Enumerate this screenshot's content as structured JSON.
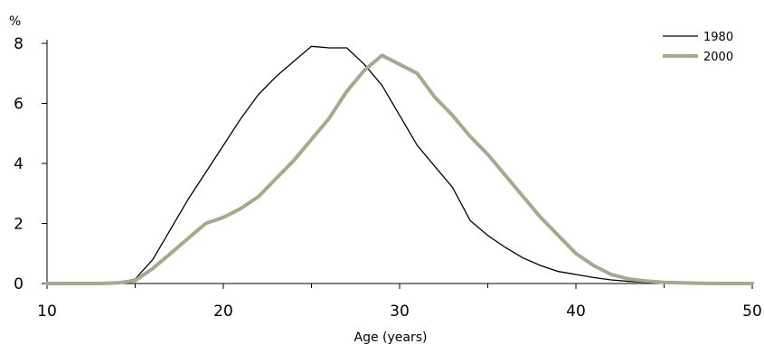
{
  "chart_data": {
    "type": "line",
    "xlabel": "Age (years)",
    "ylabel": "%",
    "xlim": [
      10,
      50
    ],
    "ylim": [
      0,
      8
    ],
    "x_ticks": [
      10,
      20,
      30,
      40,
      50
    ],
    "y_ticks": [
      0,
      2,
      4,
      6,
      8
    ],
    "grid": false,
    "legend_position": "top-right",
    "series": [
      {
        "name": "1980",
        "color": "#000000",
        "x": [
          10,
          11,
          12,
          13,
          14,
          15,
          16,
          17,
          18,
          19,
          20,
          21,
          22,
          23,
          24,
          25,
          26,
          27,
          28,
          29,
          30,
          31,
          32,
          33,
          34,
          35,
          36,
          37,
          38,
          39,
          40,
          41,
          42,
          43,
          44,
          45,
          46,
          47,
          48,
          49,
          50
        ],
        "values": [
          0,
          0,
          0,
          0,
          0.02,
          0.15,
          0.8,
          1.8,
          2.8,
          3.7,
          4.6,
          5.5,
          6.3,
          6.9,
          7.4,
          7.9,
          7.85,
          7.85,
          7.3,
          6.6,
          5.6,
          4.6,
          3.9,
          3.2,
          2.1,
          1.6,
          1.2,
          0.85,
          0.6,
          0.4,
          0.3,
          0.2,
          0.12,
          0.07,
          0.04,
          0.02,
          0.01,
          0,
          0,
          0,
          0
        ]
      },
      {
        "name": "2000",
        "color": "#a8a88c",
        "x": [
          10,
          11,
          12,
          13,
          14,
          15,
          16,
          17,
          18,
          19,
          20,
          21,
          22,
          23,
          24,
          25,
          26,
          27,
          28,
          29,
          30,
          31,
          32,
          33,
          34,
          35,
          36,
          37,
          38,
          39,
          40,
          41,
          42,
          43,
          44,
          45,
          46,
          47,
          48,
          49,
          50
        ],
        "values": [
          0,
          0,
          0,
          0,
          0.02,
          0.1,
          0.5,
          1.0,
          1.5,
          2.0,
          2.2,
          2.5,
          2.9,
          3.5,
          4.1,
          4.8,
          5.5,
          6.4,
          7.1,
          7.6,
          7.3,
          7.0,
          6.2,
          5.6,
          4.9,
          4.3,
          3.6,
          2.9,
          2.2,
          1.6,
          1.0,
          0.6,
          0.3,
          0.15,
          0.08,
          0.04,
          0.02,
          0.01,
          0,
          0,
          0
        ]
      }
    ]
  }
}
